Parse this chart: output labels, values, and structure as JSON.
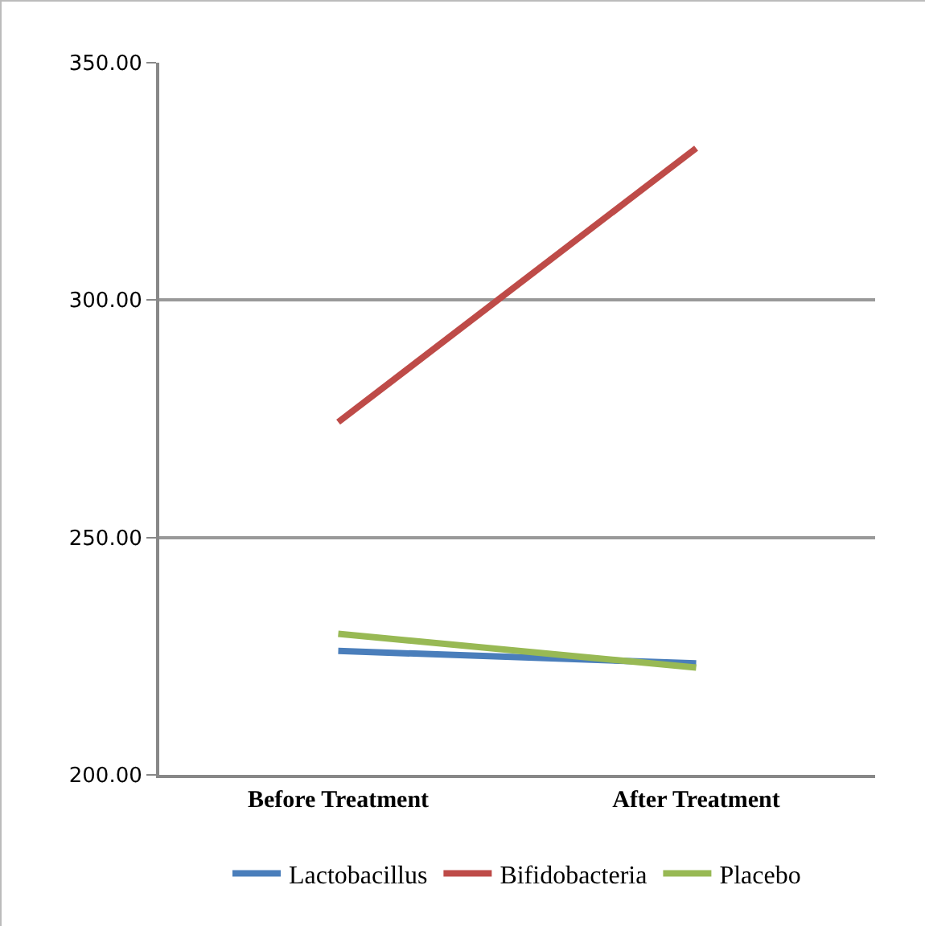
{
  "chart_data": {
    "type": "line",
    "categories": [
      "Before Treatment",
      "After Treatment"
    ],
    "series": [
      {
        "name": "Lactobacillus",
        "color": "#4a7ebb",
        "values": [
          226.1,
          223.5
        ]
      },
      {
        "name": "Bifidobacteria",
        "color": "#be4b48",
        "values": [
          274.3,
          332
        ]
      },
      {
        "name": "Placebo",
        "color": "#98b954",
        "values": [
          229.7,
          222.6
        ]
      }
    ],
    "ylim": [
      200,
      350
    ],
    "yticks": [
      {
        "value": 200,
        "label": "200.00"
      },
      {
        "value": 250,
        "label": "250.00"
      },
      {
        "value": 300,
        "label": "300.00"
      },
      {
        "value": 350,
        "label": "350.00"
      }
    ],
    "grid": "y",
    "legend": "bottom",
    "marker": "none",
    "line_style": "solid"
  }
}
